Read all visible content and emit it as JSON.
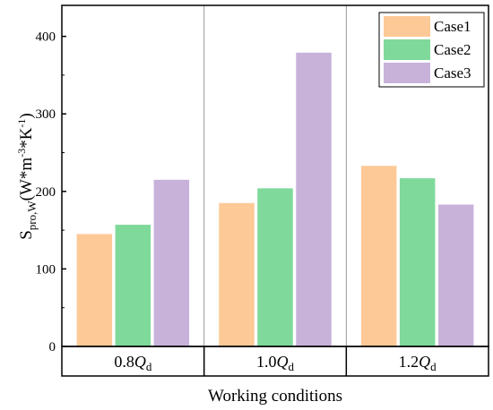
{
  "chart_data": {
    "type": "bar",
    "categories": [
      {
        "main": "0.8",
        "italic": "Q",
        "sub": "d"
      },
      {
        "main": "1.0",
        "italic": "Q",
        "sub": "d"
      },
      {
        "main": "1.2",
        "italic": "Q",
        "sub": "d"
      }
    ],
    "series": [
      {
        "name": "Case1",
        "color": "#FDC997",
        "values": [
          145,
          185,
          233
        ]
      },
      {
        "name": "Case2",
        "color": "#7FD99B",
        "values": [
          157,
          204,
          217
        ]
      },
      {
        "name": "Case3",
        "color": "#C8B2DA",
        "values": [
          215,
          379,
          183
        ]
      }
    ],
    "ylim": [
      0,
      440
    ],
    "yticks": [
      0,
      100,
      200,
      300,
      400
    ],
    "xlabel": "Working conditions",
    "ylabel": {
      "base": "S",
      "sub": "pro,W",
      "open": "(W*m",
      "sup1": "-3",
      "mid": "*K",
      "sup2": "-1",
      "close": ")"
    },
    "legend_position": "top-right",
    "grid": {
      "vertical_separators": true,
      "horizontal": false
    }
  }
}
